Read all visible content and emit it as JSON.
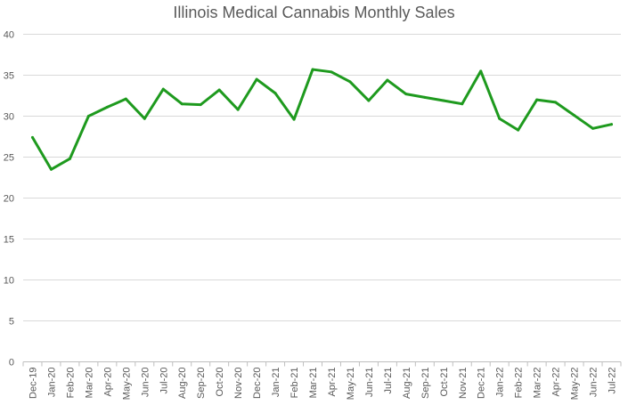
{
  "chart_data": {
    "type": "line",
    "title": "Illinois Medical Cannabis Monthly Sales",
    "xlabel": "",
    "ylabel": "",
    "ylim": [
      0,
      40
    ],
    "yticks": [
      0,
      5,
      10,
      15,
      20,
      25,
      30,
      35,
      40
    ],
    "grid": "horizontal",
    "legend": "none",
    "categories": [
      "Dec-19",
      "Jan-20",
      "Feb-20",
      "Mar-20",
      "Apr-20",
      "May-20",
      "Jun-20",
      "Jul-20",
      "Aug-20",
      "Sep-20",
      "Oct-20",
      "Nov-20",
      "Dec-20",
      "Jan-21",
      "Feb-21",
      "Mar-21",
      "Apr-21",
      "May-21",
      "Jun-21",
      "Jul-21",
      "Aug-21",
      "Sep-21",
      "Oct-21",
      "Nov-21",
      "Dec-21",
      "Jan-22",
      "Feb-22",
      "Mar-22",
      "Apr-22",
      "May-22",
      "Jun-22",
      "Jul-22"
    ],
    "series": [
      {
        "color": "#1e9a1e",
        "values": [
          27.4,
          23.5,
          24.8,
          30.0,
          31.1,
          32.1,
          29.7,
          33.3,
          31.5,
          31.4,
          33.2,
          30.8,
          34.5,
          32.8,
          29.6,
          35.7,
          35.4,
          34.2,
          31.9,
          34.4,
          32.7,
          32.3,
          31.9,
          31.5,
          35.5,
          29.7,
          28.3,
          32.0,
          31.7,
          30.1,
          28.5,
          29.0
        ]
      }
    ]
  }
}
